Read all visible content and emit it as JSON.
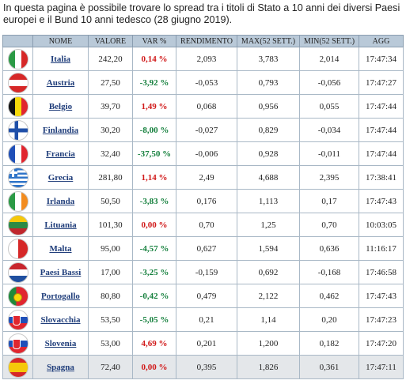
{
  "intro": "In questa pagina è possibile trovare lo spread tra i titoli di Stato a 10 anni dei diversi Paesi europei e il Bund 10 anni tedesco (28 giugno 2019).",
  "headers": [
    "",
    "NOME",
    "VALORE",
    "VAR %",
    "RENDIMENTO",
    "MAX(52 SETT.)",
    "MIN(52 SETT.)",
    "AGG"
  ],
  "rows": [
    {
      "name": "Italia",
      "valore": "242,20",
      "var": "0,14 %",
      "rendimento": "2,093",
      "max": "3,783",
      "min": "2,014",
      "agg": "17:47:34",
      "trend": "pos",
      "flag": "it",
      "flag_colors": [
        "#2b9a45",
        "#ffffff",
        "#d62828"
      ]
    },
    {
      "name": "Austria",
      "valore": "27,50",
      "var": "-3,92 %",
      "rendimento": "-0,053",
      "max": "0,793",
      "min": "-0,056",
      "agg": "17:47:27",
      "trend": "neg",
      "flag": "at",
      "flag_colors": [
        "#d62828",
        "#ffffff",
        "#d62828"
      ]
    },
    {
      "name": "Belgio",
      "valore": "39,70",
      "var": "1,49 %",
      "rendimento": "0,068",
      "max": "0,956",
      "min": "0,055",
      "agg": "17:47:44",
      "trend": "pos",
      "flag": "be",
      "flag_colors": [
        "#111111",
        "#f5d90a",
        "#e0262f"
      ]
    },
    {
      "name": "Finlandia",
      "valore": "30,20",
      "var": "-8,00 %",
      "rendimento": "-0,027",
      "max": "0,829",
      "min": "-0,034",
      "agg": "17:47:44",
      "trend": "neg",
      "flag": "fi",
      "flag_colors": [
        "#ffffff",
        "#1f4fa8"
      ]
    },
    {
      "name": "Francia",
      "valore": "32,40",
      "var": "-37,50 %",
      "rendimento": "-0,006",
      "max": "0,928",
      "min": "-0,011",
      "agg": "17:47:44",
      "trend": "neg",
      "flag": "fr",
      "flag_colors": [
        "#1f4fb8",
        "#ffffff",
        "#e0262f"
      ]
    },
    {
      "name": "Grecia",
      "valore": "281,80",
      "var": "1,14 %",
      "rendimento": "2,49",
      "max": "4,688",
      "min": "2,395",
      "agg": "17:38:41",
      "trend": "pos",
      "flag": "gr",
      "flag_colors": [
        "#2f74c8",
        "#ffffff"
      ]
    },
    {
      "name": "Irlanda",
      "valore": "50,50",
      "var": "-3,83 %",
      "rendimento": "0,176",
      "max": "1,113",
      "min": "0,17",
      "agg": "17:47:43",
      "trend": "neg",
      "flag": "ie",
      "flag_colors": [
        "#2b9a45",
        "#ffffff",
        "#f28c1f"
      ]
    },
    {
      "name": "Lituania",
      "valore": "101,30",
      "var": "0,00 %",
      "rendimento": "0,70",
      "max": "1,25",
      "min": "0,70",
      "agg": "10:03:05",
      "trend": "zero",
      "flag": "lt",
      "flag_colors": [
        "#f5c80a",
        "#2b8a45",
        "#c0272d"
      ]
    },
    {
      "name": "Malta",
      "valore": "95,00",
      "var": "-4,57 %",
      "rendimento": "0,627",
      "max": "1,594",
      "min": "0,636",
      "agg": "11:16:17",
      "trend": "neg",
      "flag": "mt",
      "flag_colors": [
        "#ffffff",
        "#d62828"
      ]
    },
    {
      "name": "Paesi Bassi",
      "valore": "17,00",
      "var": "-3,25 %",
      "rendimento": "-0,159",
      "max": "0,692",
      "min": "-0,168",
      "agg": "17:46:58",
      "trend": "neg",
      "flag": "nl",
      "flag_colors": [
        "#c8262e",
        "#ffffff",
        "#1f4fa0"
      ]
    },
    {
      "name": "Portogallo",
      "valore": "80,80",
      "var": "-0,42 %",
      "rendimento": "0,479",
      "max": "2,122",
      "min": "0,462",
      "agg": "17:47:43",
      "trend": "neg",
      "flag": "pt",
      "flag_colors": [
        "#1e8a3a",
        "#e0262f",
        "#f5d90a"
      ]
    },
    {
      "name": "Slovacchia",
      "valore": "53,50",
      "var": "-5,05 %",
      "rendimento": "0,21",
      "max": "1,14",
      "min": "0,20",
      "agg": "17:47:23",
      "trend": "neg",
      "flag": "sk",
      "flag_colors": [
        "#ffffff",
        "#1f4fb8",
        "#e0262f"
      ]
    },
    {
      "name": "Slovenia",
      "valore": "53,00",
      "var": "4,69 %",
      "rendimento": "0,201",
      "max": "1,200",
      "min": "0,182",
      "agg": "17:47:20",
      "trend": "pos",
      "flag": "si",
      "flag_colors": [
        "#ffffff",
        "#1f4fb8",
        "#e0262f"
      ]
    },
    {
      "name": "Spagna",
      "valore": "72,40",
      "var": "0,00 %",
      "rendimento": "0,395",
      "max": "1,826",
      "min": "0,361",
      "agg": "17:47:11",
      "trend": "zero",
      "flag": "es",
      "flag_colors": [
        "#d62828",
        "#f5c80a",
        "#d62828"
      ]
    }
  ]
}
